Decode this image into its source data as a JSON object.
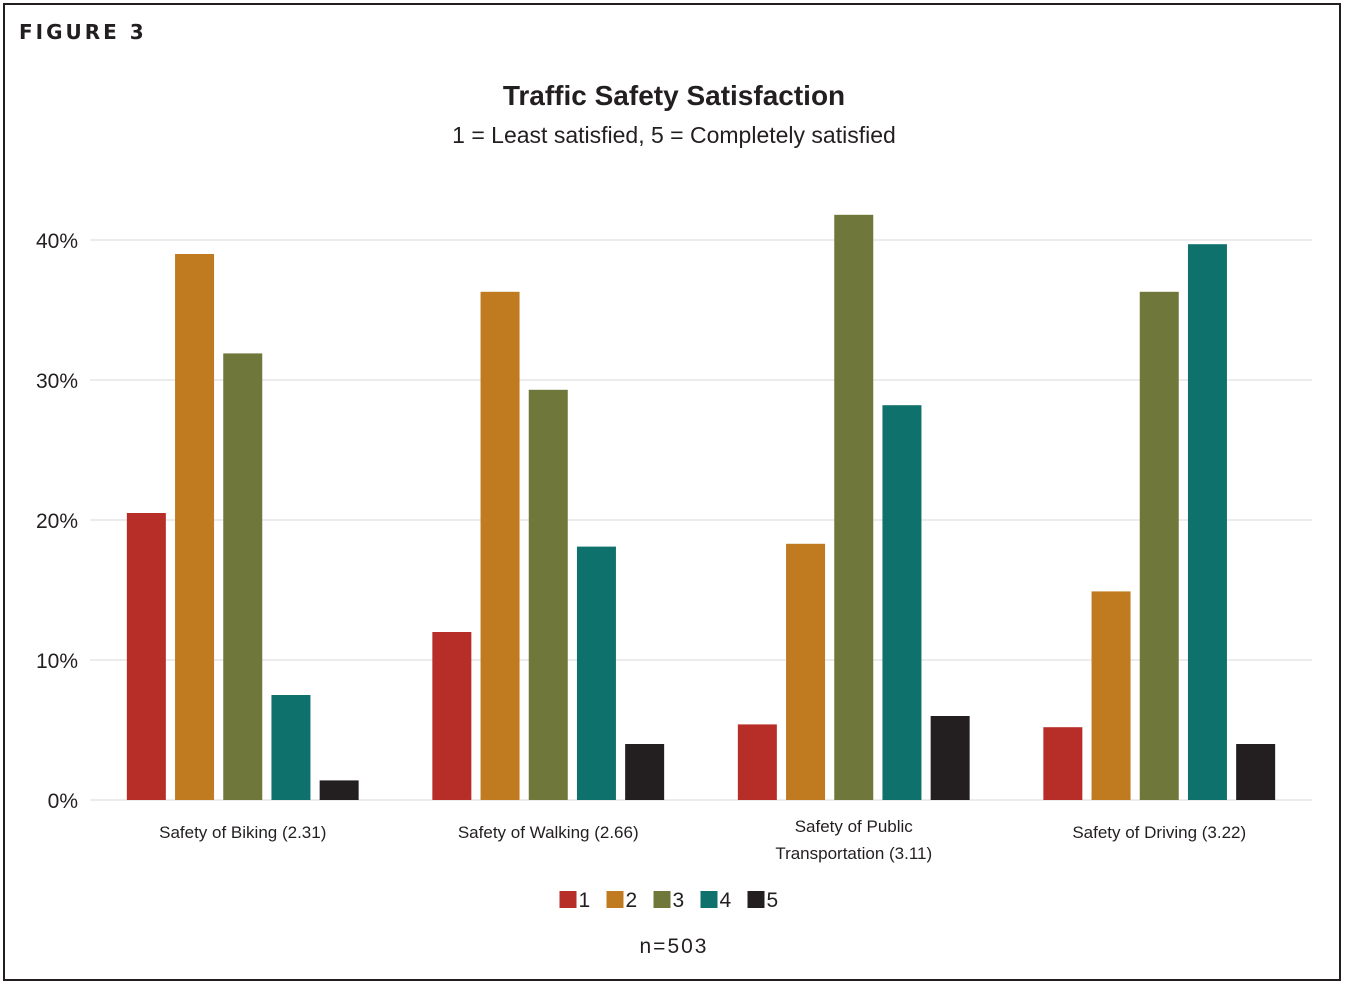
{
  "figure_label": "FIGURE 3",
  "footnote": "n=503",
  "colors": {
    "series": [
      "#b62e27",
      "#c07a1f",
      "#6f773a",
      "#0f716c",
      "#231f20"
    ],
    "grid": "#ececec",
    "text": "#231f20"
  },
  "chart_data": {
    "type": "bar",
    "title": "Traffic Safety Satisfaction",
    "subtitle": "1 = Least satisfied, 5 = Completely satisfied",
    "categories": [
      [
        "Safety of Biking (2.31)"
      ],
      [
        "Safety of Walking (2.66)"
      ],
      [
        "Safety of Public",
        "Transportation (3.11)"
      ],
      [
        "Safety of Driving (3.22)"
      ]
    ],
    "series": [
      {
        "name": "1",
        "values": [
          20.5,
          12.0,
          5.4,
          5.2
        ]
      },
      {
        "name": "2",
        "values": [
          39.0,
          36.3,
          18.3,
          14.9
        ]
      },
      {
        "name": "3",
        "values": [
          31.9,
          29.3,
          41.8,
          36.3
        ]
      },
      {
        "name": "4",
        "values": [
          7.5,
          18.1,
          28.2,
          39.7
        ]
      },
      {
        "name": "5",
        "values": [
          1.4,
          4.0,
          6.0,
          4.0
        ]
      }
    ],
    "yticks": [
      "0%",
      "10%",
      "20%",
      "30%",
      "40%"
    ],
    "ylim": [
      0,
      40
    ],
    "grid": true,
    "legend_position": "bottom"
  }
}
